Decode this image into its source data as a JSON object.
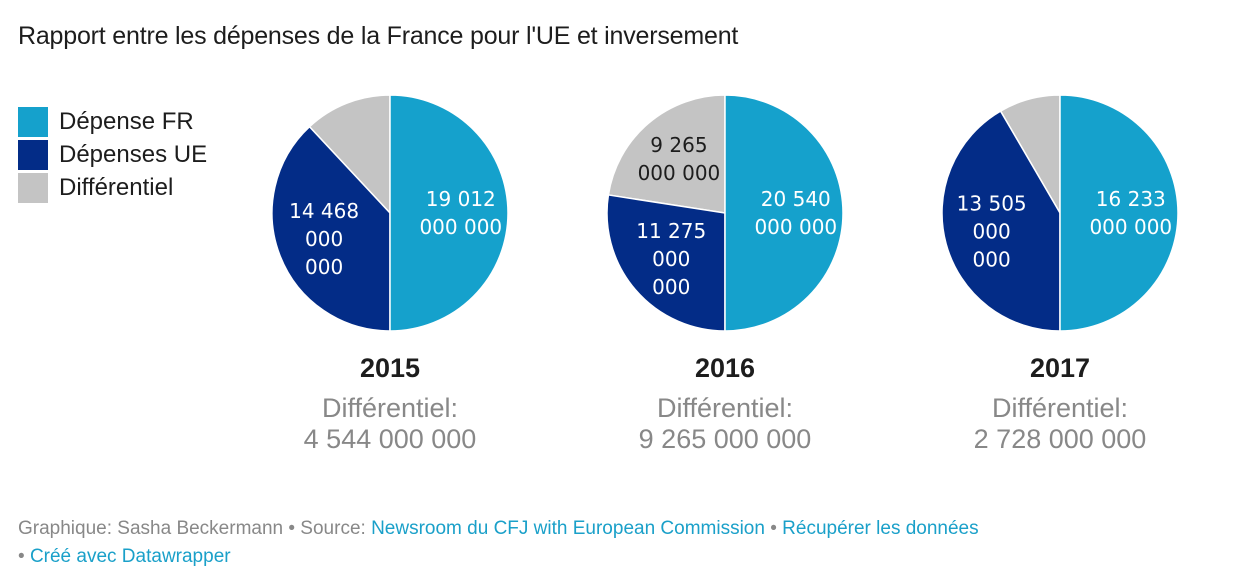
{
  "title": "Rapport entre les dépenses de la France pour l'UE et inversement",
  "legend": [
    {
      "label": "Dépense FR",
      "color": "#15a1cc"
    },
    {
      "label": "Dépenses UE",
      "color": "#032c87"
    },
    {
      "label": "Différentiel",
      "color": "#c4c4c4"
    }
  ],
  "chart_data": [
    {
      "type": "pie",
      "title": "2015",
      "subtitle": "Différentiel:",
      "subtitle_value": "4 544 000 000",
      "slices": [
        {
          "name": "Dépense FR",
          "value": 19012000000,
          "label_lines": [
            "19 012",
            "000 000"
          ],
          "color": "#15a1cc",
          "text_color": "#ffffff"
        },
        {
          "name": "Dépenses UE",
          "value": 14468000000,
          "label_lines": [
            "14 468",
            "000",
            "000"
          ],
          "color": "#032c87",
          "text_color": "#ffffff"
        },
        {
          "name": "Différentiel",
          "value": 4544000000,
          "label_lines": [],
          "color": "#c4c4c4",
          "text_color": "#1d1d1d"
        }
      ]
    },
    {
      "type": "pie",
      "title": "2016",
      "subtitle": "Différentiel:",
      "subtitle_value": "9 265 000 000",
      "slices": [
        {
          "name": "Dépense FR",
          "value": 20540000000,
          "label_lines": [
            "20 540",
            "000 000"
          ],
          "color": "#15a1cc",
          "text_color": "#ffffff"
        },
        {
          "name": "Dépenses UE",
          "value": 11275000000,
          "label_lines": [
            "11 275",
            "000",
            "000"
          ],
          "color": "#032c87",
          "text_color": "#ffffff"
        },
        {
          "name": "Différentiel",
          "value": 9265000000,
          "label_lines": [
            "9 265",
            "000 000"
          ],
          "color": "#c4c4c4",
          "text_color": "#1d1d1d"
        }
      ]
    },
    {
      "type": "pie",
      "title": "2017",
      "subtitle": "Différentiel:",
      "subtitle_value": "2 728 000 000",
      "slices": [
        {
          "name": "Dépense FR",
          "value": 16233000000,
          "label_lines": [
            "16 233",
            "000 000"
          ],
          "color": "#15a1cc",
          "text_color": "#ffffff"
        },
        {
          "name": "Dépenses UE",
          "value": 13505000000,
          "label_lines": [
            "13 505",
            "000",
            "000"
          ],
          "color": "#032c87",
          "text_color": "#ffffff"
        },
        {
          "name": "Différentiel",
          "value": 2728000000,
          "label_lines": [],
          "color": "#c4c4c4",
          "text_color": "#1d1d1d"
        }
      ]
    }
  ],
  "footer": {
    "credit_prefix": "Graphique: Sasha Beckermann • Source: ",
    "source_link": "Newsroom du CFJ with European Commission",
    "sep1": " • ",
    "data_link": "Récupérer les données",
    "sep2": " • ",
    "made_with_link": "Créé avec Datawrapper"
  }
}
